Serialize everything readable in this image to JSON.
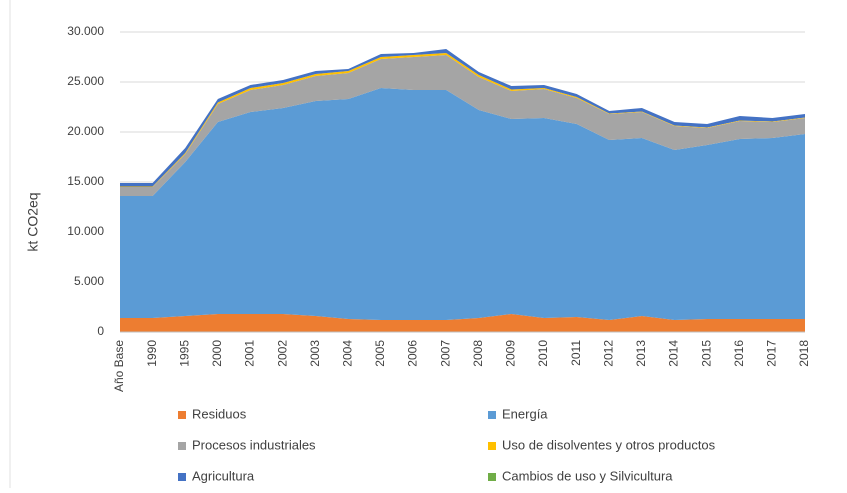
{
  "chart_data": {
    "type": "area",
    "stacked": true,
    "y_label": "kt CO2eq",
    "categories": [
      "Año Base",
      "1990",
      "1995",
      "2000",
      "2001",
      "2002",
      "2003",
      "2004",
      "2005",
      "2006",
      "2007",
      "2008",
      "2009",
      "2010",
      "2011",
      "2012",
      "2013",
      "2014",
      "2015",
      "2016",
      "2017",
      "2018"
    ],
    "series": [
      {
        "name": "Residuos",
        "color": "#ed7d31",
        "values": [
          1400,
          1400,
          1600,
          1800,
          1800,
          1800,
          1600,
          1300,
          1200,
          1200,
          1200,
          1400,
          1800,
          1400,
          1500,
          1200,
          1600,
          1200,
          1300,
          1300,
          1300,
          1300
        ]
      },
      {
        "name": "Energía",
        "color": "#5b9bd5",
        "values": [
          12200,
          12200,
          15400,
          19200,
          20200,
          20600,
          21500,
          22000,
          23200,
          23000,
          23000,
          20800,
          19500,
          20000,
          19300,
          18000,
          17800,
          17000,
          17400,
          18000,
          18100,
          18500
        ]
      },
      {
        "name": "Procesos industriales",
        "color": "#a5a5a5",
        "values": [
          900,
          900,
          800,
          1800,
          2200,
          2300,
          2500,
          2600,
          2900,
          3300,
          3500,
          3300,
          2800,
          2900,
          2600,
          2600,
          2600,
          2400,
          1700,
          1800,
          1600,
          1600
        ]
      },
      {
        "name": "Uso de disolventes y otros productos",
        "color": "#ffc000",
        "values": [
          50,
          50,
          100,
          150,
          200,
          200,
          200,
          200,
          200,
          200,
          200,
          200,
          150,
          100,
          100,
          50,
          50,
          50,
          50,
          50,
          50,
          50
        ]
      },
      {
        "name": "Agricultura",
        "color": "#4472c4",
        "values": [
          350,
          350,
          500,
          350,
          300,
          300,
          300,
          200,
          300,
          200,
          400,
          300,
          350,
          300,
          300,
          250,
          350,
          350,
          350,
          450,
          350,
          350
        ]
      },
      {
        "name": "Cambios de uso y Silvicultura",
        "color": "#70ad47",
        "values": [
          0,
          0,
          0,
          0,
          0,
          0,
          0,
          0,
          0,
          0,
          0,
          0,
          0,
          0,
          0,
          0,
          0,
          0,
          0,
          0,
          0,
          0
        ]
      }
    ],
    "ylim": [
      0,
      30000
    ],
    "yticks": [
      0,
      {
        "value": 5000,
        "label": "5.000"
      },
      {
        "value": 10000,
        "label": "10.000"
      },
      {
        "value": 15000,
        "label": "15.000"
      },
      {
        "value": 20000,
        "label": "20.000"
      },
      {
        "value": 25000,
        "label": "25.000"
      },
      {
        "value": 30000,
        "label": "30.000"
      }
    ],
    "grid": true
  }
}
